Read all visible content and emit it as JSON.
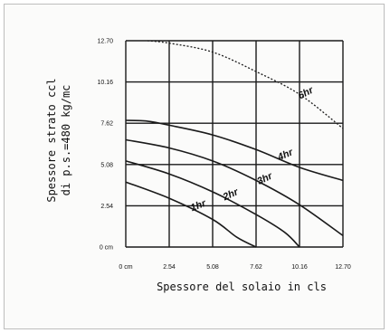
{
  "chart_data": {
    "type": "line",
    "xlabel": "Spessore del solaio in cls",
    "ylabel_line1": "Spessore strato ccl",
    "ylabel_line2": "di p.s.=480 kg/mc",
    "x_ticks": [
      "0 cm",
      "2.54",
      "5.08",
      "7.62",
      "10.16",
      "12.70"
    ],
    "y_ticks": [
      "0 cm",
      "2.54",
      "5.08",
      "7.62",
      "10.16",
      "12.70"
    ],
    "xlim": [
      0,
      12.7
    ],
    "ylim": [
      0,
      12.7
    ],
    "grid": true,
    "series": [
      {
        "name": "1hr",
        "style": "solid",
        "x": [
          0,
          2.54,
          5.08,
          6.5,
          7.62
        ],
        "y": [
          4.0,
          3.0,
          1.7,
          0.6,
          0
        ]
      },
      {
        "name": "2hr",
        "style": "solid",
        "x": [
          0,
          2.54,
          5.08,
          7.62,
          9.3,
          10.16
        ],
        "y": [
          5.3,
          4.5,
          3.4,
          2.0,
          0.9,
          0
        ]
      },
      {
        "name": "3hr",
        "style": "solid",
        "x": [
          0,
          2.54,
          5.08,
          7.62,
          10.16,
          12.7
        ],
        "y": [
          6.6,
          6.1,
          5.3,
          4.1,
          2.6,
          0.7
        ]
      },
      {
        "name": "4hr",
        "style": "solid",
        "x": [
          0,
          1.27,
          2.54,
          5.08,
          7.62,
          10.16,
          12.7
        ],
        "y": [
          7.8,
          7.75,
          7.5,
          6.9,
          6.0,
          4.9,
          4.1
        ]
      },
      {
        "name": "6hr",
        "style": "dashed",
        "x": [
          1.27,
          2.54,
          5.08,
          7.62,
          10.16,
          12.7
        ],
        "y": [
          12.7,
          12.55,
          12.0,
          10.8,
          9.4,
          7.3
        ]
      }
    ]
  },
  "colors": {
    "line": "#1a1a1a",
    "grid": "#1a1a1a",
    "background": "#fbfbfa"
  }
}
